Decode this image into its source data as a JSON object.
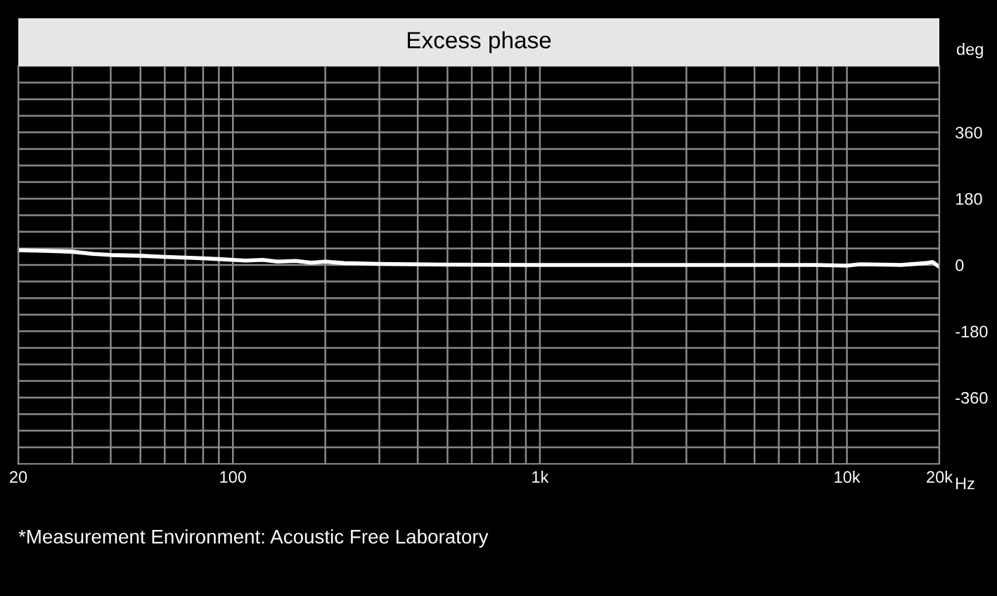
{
  "chart_data": {
    "type": "line",
    "title": "Excess phase",
    "ylabel": "deg",
    "annotations": [
      "*Measurement Environment: Acoustic Free Laboratory"
    ],
    "log": "x",
    "grid": true,
    "line_style": "solid",
    "marker": "none",
    "xlim": [
      20,
      20000
    ],
    "ylim": [
      -540,
      540
    ],
    "xticks": [
      {
        "value": 20,
        "label": "20"
      },
      {
        "value": 30,
        "label": null
      },
      {
        "value": 40,
        "label": null
      },
      {
        "value": 50,
        "label": null
      },
      {
        "value": 60,
        "label": null
      },
      {
        "value": 70,
        "label": null
      },
      {
        "value": 80,
        "label": null
      },
      {
        "value": 90,
        "label": null
      },
      {
        "value": 100,
        "label": "100"
      },
      {
        "value": 200,
        "label": null
      },
      {
        "value": 300,
        "label": null
      },
      {
        "value": 400,
        "label": null
      },
      {
        "value": 500,
        "label": null
      },
      {
        "value": 600,
        "label": null
      },
      {
        "value": 700,
        "label": null
      },
      {
        "value": 800,
        "label": null
      },
      {
        "value": 900,
        "label": null
      },
      {
        "value": 1000,
        "label": "1k"
      },
      {
        "value": 2000,
        "label": null
      },
      {
        "value": 3000,
        "label": null
      },
      {
        "value": 4000,
        "label": null
      },
      {
        "value": 5000,
        "label": null
      },
      {
        "value": 6000,
        "label": null
      },
      {
        "value": 7000,
        "label": null
      },
      {
        "value": 8000,
        "label": null
      },
      {
        "value": 9000,
        "label": null
      },
      {
        "value": 10000,
        "label": "10k"
      },
      {
        "value": 20000,
        "label": "20k"
      }
    ],
    "xlabel": "Hz",
    "yticks": [
      {
        "value": -495,
        "label": null
      },
      {
        "value": -450,
        "label": null
      },
      {
        "value": -405,
        "label": null
      },
      -360,
      {
        "value": -315,
        "label": null
      },
      {
        "value": -270,
        "label": null
      },
      {
        "value": -225,
        "label": null
      },
      -180,
      {
        "value": -135,
        "label": null
      },
      {
        "value": -90,
        "label": null
      },
      {
        "value": -45,
        "label": null
      },
      0,
      {
        "value": 45,
        "label": null
      },
      {
        "value": 90,
        "label": null
      },
      {
        "value": 135,
        "label": null
      },
      180,
      {
        "value": 225,
        "label": null
      },
      {
        "value": 270,
        "label": null
      },
      {
        "value": 315,
        "label": null
      },
      360,
      {
        "value": 405,
        "label": null
      },
      {
        "value": 450,
        "label": null
      },
      {
        "value": 495,
        "label": null
      }
    ],
    "series": [
      {
        "color": "#ffffff",
        "x": [
          20,
          25,
          30,
          35,
          40,
          50,
          60,
          70,
          80,
          90,
          100,
          110,
          125,
          140,
          160,
          180,
          200,
          230,
          300,
          500,
          1000,
          3000,
          8000,
          10000,
          11000,
          15000,
          18000,
          19000,
          20000
        ],
        "values": [
          40,
          38,
          36,
          30,
          27,
          25,
          22,
          20,
          18,
          16,
          14,
          12,
          14,
          9,
          11,
          6,
          9,
          5,
          3,
          1,
          0,
          0,
          0,
          -2,
          2,
          0,
          5,
          8,
          -5
        ]
      }
    ]
  }
}
